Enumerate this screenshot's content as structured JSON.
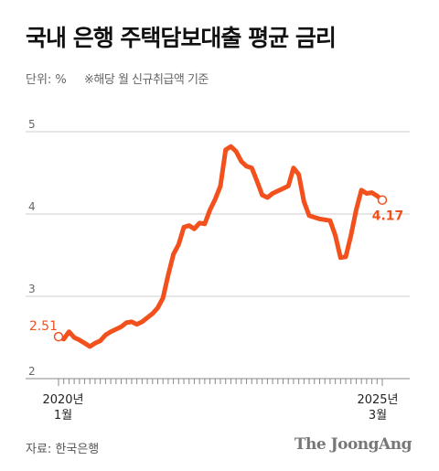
{
  "title": "국내 은행 주택담보대출 평균 금리",
  "unit_label": "단위: %",
  "note": "※해당 월 신규취급액 기준",
  "source": "자료: 한국은행",
  "brand": "The JoongAng",
  "colors": {
    "line": "#f2501c",
    "axis": "#888888",
    "grid": "#cfcfcf",
    "text": "#222222"
  },
  "chart_data": {
    "type": "line",
    "title": "국내 은행 주택담보대출 평균 금리",
    "ylabel": "단위: %",
    "ylim": [
      2,
      5
    ],
    "yticks": [
      2,
      3,
      4,
      5
    ],
    "grid": true,
    "x_start": "2020-01",
    "x_end": "2025-03",
    "x_tick_labels": [
      {
        "line1": "2020년",
        "line2": "1월"
      },
      {
        "line1": "2025년",
        "line2": "3월"
      }
    ],
    "first_label": "2.51",
    "last_label": "4.17",
    "series": [
      {
        "values": [
          2.51,
          2.48,
          2.57,
          2.5,
          2.47,
          2.43,
          2.39,
          2.43,
          2.46,
          2.53,
          2.57,
          2.6,
          2.63,
          2.68,
          2.69,
          2.66,
          2.69,
          2.74,
          2.79,
          2.86,
          2.98,
          3.26,
          3.51,
          3.63,
          3.84,
          3.86,
          3.82,
          3.89,
          3.88,
          4.05,
          4.18,
          4.34,
          4.78,
          4.82,
          4.76,
          4.64,
          4.58,
          4.56,
          4.4,
          4.23,
          4.2,
          4.25,
          4.28,
          4.31,
          4.34,
          4.56,
          4.48,
          4.15,
          3.98,
          3.96,
          3.94,
          3.93,
          3.92,
          3.74,
          3.47,
          3.48,
          3.74,
          4.05,
          4.29,
          4.25,
          4.26,
          4.22,
          4.17
        ]
      }
    ]
  }
}
